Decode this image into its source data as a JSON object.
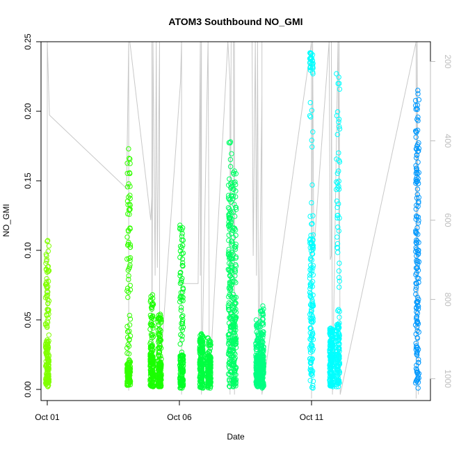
{
  "chart_data": {
    "type": "scatter",
    "title": "ATOM3 Southbound NO_GMI",
    "xlabel": "Date",
    "ylabel": "NO_GMI",
    "x_axis_type": "date",
    "xlim": [
      "2016-09-30T18:20",
      "2016-10-15T12:00"
    ],
    "ylim": [
      -0.008,
      0.25
    ],
    "x_ticks": [
      {
        "date": "2016-10-01",
        "label": "Oct 01"
      },
      {
        "date": "2016-10-06",
        "label": "Oct 06"
      },
      {
        "date": "2016-10-11",
        "label": "Oct 11"
      }
    ],
    "y_ticks": [
      0.0,
      0.05,
      0.1,
      0.15,
      0.2,
      0.25
    ],
    "y_tick_labels": [
      "0.00",
      "0.05",
      "0.10",
      "0.15",
      "0.20",
      "0.25"
    ],
    "secondary_axis": {
      "label": "",
      "reversed": true,
      "lim": [
        1055,
        150
      ],
      "ticks": [
        200,
        400,
        600,
        800,
        1000
      ],
      "tick_labels": [
        "200",
        "400",
        "600",
        "800",
        "1000"
      ],
      "color": "#bdbdbd"
    },
    "grid": false,
    "marker": "open-circle",
    "point_clusters": [
      {
        "date": "2016-10-01T00:00",
        "y_min": 0.002,
        "y_max": 0.107,
        "color": "#80ff00",
        "dense_below": 0.035
      },
      {
        "date": "2016-10-04T02:00",
        "y_min": 0.003,
        "y_max": 0.173,
        "color": "#33ff00",
        "dense_below": 0.02
      },
      {
        "date": "2016-10-04T23:00",
        "y_min": 0.002,
        "y_max": 0.068,
        "color": "#1aff00",
        "dense_below": 0.025
      },
      {
        "date": "2016-10-05T06:00",
        "y_min": 0.002,
        "y_max": 0.054,
        "color": "#1aff00",
        "dense_below": 0.02
      },
      {
        "date": "2016-10-06T02:00",
        "y_min": 0.001,
        "y_max": 0.118,
        "color": "#00ff26",
        "dense_below": 0.025
      },
      {
        "date": "2016-10-06T20:00",
        "y_min": 0.001,
        "y_max": 0.04,
        "color": "#00ff40",
        "dense_below": 0.03
      },
      {
        "date": "2016-10-07T03:00",
        "y_min": 0.001,
        "y_max": 0.037,
        "color": "#00ff40",
        "dense_below": 0.025
      },
      {
        "date": "2016-10-07T22:00",
        "y_min": 0.002,
        "y_max": 0.178,
        "color": "#00ff66",
        "dense_below": 0.14
      },
      {
        "date": "2016-10-08T02:00",
        "y_min": 0.002,
        "y_max": 0.157,
        "color": "#00ff66",
        "dense_below": 0.07
      },
      {
        "date": "2016-10-08T23:00",
        "y_min": 0.002,
        "y_max": 0.05,
        "color": "#00ff80",
        "dense_below": 0.025
      },
      {
        "date": "2016-10-09T03:00",
        "y_min": 0.001,
        "y_max": 0.06,
        "color": "#00ff80",
        "dense_below": 0.03
      },
      {
        "date": "2016-10-11T00:00",
        "y_min": 0.001,
        "y_max": 0.242,
        "color": "#00ffff",
        "dense_below": 0.11,
        "dense_top_from": 0.228
      },
      {
        "date": "2016-10-11T18:00",
        "y_min": 0.002,
        "y_max": 0.044,
        "color": "#00ffff",
        "dense_below": 0.044
      },
      {
        "date": "2016-10-12T00:00",
        "y_min": 0.002,
        "y_max": 0.227,
        "color": "#00ffff",
        "dense_below": 0.05
      },
      {
        "date": "2016-10-15T00:00",
        "y_min": 0.001,
        "y_max": 0.215,
        "color": "#0099ff",
        "dense_below": 0.19
      }
    ],
    "secondary_series": {
      "name": "",
      "color": "#c8c8c8",
      "unit": "",
      "points": [
        [
          "2016-10-01T00:00",
          150
        ],
        [
          "2016-10-01T00:00",
          830
        ],
        [
          "2016-10-01T00:00",
          150
        ],
        [
          "2016-10-01T02:00",
          335
        ],
        [
          "2016-10-04T00:00",
          520
        ],
        [
          "2016-10-04T02:00",
          150
        ],
        [
          "2016-10-04T02:00",
          1030
        ],
        [
          "2016-10-04T02:00",
          150
        ],
        [
          "2016-10-04T03:00",
          150
        ],
        [
          "2016-10-04T22:00",
          600
        ],
        [
          "2016-10-04T23:00",
          540
        ],
        [
          "2016-10-04T23:00",
          150
        ],
        [
          "2016-10-04T23:00",
          1000
        ],
        [
          "2016-10-05T00:00",
          150
        ],
        [
          "2016-10-05T02:00",
          740
        ],
        [
          "2016-10-05T03:00",
          150
        ],
        [
          "2016-10-05T04:00",
          720
        ],
        [
          "2016-10-05T06:00",
          150
        ],
        [
          "2016-10-05T06:00",
          510
        ],
        [
          "2016-10-05T06:00",
          150
        ],
        [
          "2016-10-05T06:00",
          1000
        ],
        [
          "2016-10-06T01:00",
          250
        ],
        [
          "2016-10-06T02:00",
          150
        ],
        [
          "2016-10-06T02:00",
          1040
        ],
        [
          "2016-10-06T02:00",
          150
        ],
        [
          "2016-10-06T02:00",
          760
        ],
        [
          "2016-10-06T17:00",
          760
        ],
        [
          "2016-10-06T19:00",
          150
        ],
        [
          "2016-10-06T19:00",
          740
        ],
        [
          "2016-10-06T20:00",
          150
        ],
        [
          "2016-10-06T20:00",
          1040
        ],
        [
          "2016-10-07T02:00",
          150
        ],
        [
          "2016-10-07T03:00",
          760
        ],
        [
          "2016-10-07T03:00",
          1030
        ],
        [
          "2016-10-07T20:00",
          150
        ],
        [
          "2016-10-07T22:00",
          250
        ],
        [
          "2016-10-07T22:00",
          1040
        ],
        [
          "2016-10-07T23:00",
          150
        ],
        [
          "2016-10-08T01:00",
          150
        ],
        [
          "2016-10-08T02:00",
          1040
        ],
        [
          "2016-10-08T02:00",
          150
        ],
        [
          "2016-10-08T18:00",
          150
        ],
        [
          "2016-10-08T19:00",
          690
        ],
        [
          "2016-10-08T21:00",
          150
        ],
        [
          "2016-10-08T22:00",
          740
        ],
        [
          "2016-10-08T23:00",
          150
        ],
        [
          "2016-10-09T00:00",
          1000
        ],
        [
          "2016-10-09T03:00",
          280
        ],
        [
          "2016-10-09T03:00",
          150
        ],
        [
          "2016-10-09T03:00",
          1040
        ],
        [
          "2016-10-11T00:00",
          150
        ],
        [
          "2016-10-11T00:00",
          1050
        ],
        [
          "2016-10-11T01:00",
          150
        ],
        [
          "2016-10-11T02:00",
          680
        ],
        [
          "2016-10-11T16:00",
          150
        ],
        [
          "2016-10-11T17:00",
          700
        ],
        [
          "2016-10-11T18:00",
          690
        ],
        [
          "2016-10-11T18:00",
          150
        ],
        [
          "2016-10-11T19:00",
          1040
        ],
        [
          "2016-10-12T00:00",
          150
        ],
        [
          "2016-10-12T01:00",
          680
        ],
        [
          "2016-10-12T01:00",
          150
        ],
        [
          "2016-10-12T02:00",
          1040
        ],
        [
          "2016-10-14T23:00",
          150
        ],
        [
          "2016-10-14T23:00",
          1050
        ],
        [
          "2016-10-15T00:00",
          150
        ],
        [
          "2016-10-15T01:00",
          1040
        ]
      ]
    }
  }
}
